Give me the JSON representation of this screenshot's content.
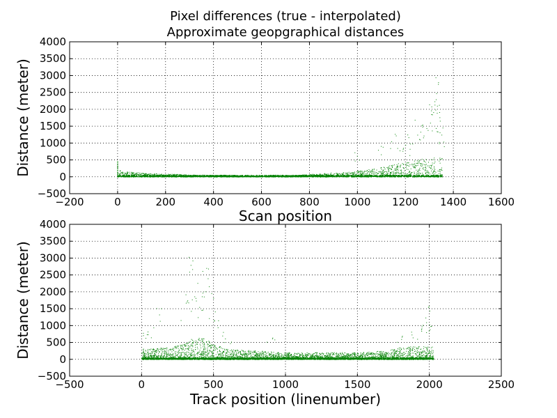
{
  "figure": {
    "title_line1": "Pixel differences (true - interpolated)",
    "title_line2": "Approximate geopgraphical distances"
  },
  "chart_data": [
    {
      "type": "scatter",
      "xlabel": "Scan position",
      "ylabel": "Distance (meter)",
      "xlim": [
        -200,
        1600
      ],
      "ylim": [
        -500,
        4000
      ],
      "xticks": [
        -200,
        0,
        200,
        400,
        600,
        800,
        1000,
        1200,
        1400,
        1600
      ],
      "yticks": [
        -500,
        0,
        500,
        1000,
        1500,
        2000,
        2500,
        3000,
        3500,
        4000
      ],
      "grid": true,
      "marker_color": "#008000",
      "x_data_range": [
        0,
        1354
      ],
      "envelope_x": [
        0,
        2,
        10,
        50,
        100,
        200,
        300,
        400,
        500,
        600,
        700,
        800,
        900,
        1000,
        1050,
        1100,
        1150,
        1200,
        1250,
        1300,
        1330,
        1354
      ],
      "envelope_dense_max": [
        480,
        220,
        180,
        150,
        110,
        80,
        60,
        45,
        35,
        20,
        30,
        70,
        120,
        170,
        220,
        280,
        350,
        450,
        500,
        550,
        560,
        600
      ],
      "outliers": [
        [
          1000,
          700
        ],
        [
          1100,
          900
        ],
        [
          1150,
          1200
        ],
        [
          1180,
          800
        ],
        [
          1200,
          1200
        ],
        [
          1230,
          1000
        ],
        [
          1250,
          1700
        ],
        [
          1270,
          1600
        ],
        [
          1290,
          1700
        ],
        [
          1300,
          2100
        ],
        [
          1310,
          2500
        ],
        [
          1320,
          2900
        ],
        [
          1330,
          2700
        ],
        [
          1335,
          2200
        ],
        [
          1340,
          1900
        ],
        [
          1345,
          1500
        ],
        [
          1350,
          1300
        ]
      ]
    },
    {
      "type": "scatter",
      "xlabel": "Track position (linenumber)",
      "ylabel": "Distance (meter)",
      "xlim": [
        -500,
        2500
      ],
      "ylim": [
        -500,
        4000
      ],
      "xticks": [
        -500,
        0,
        500,
        1000,
        1500,
        2000,
        2500
      ],
      "yticks": [
        -500,
        0,
        500,
        1000,
        1500,
        2000,
        2500,
        3000,
        3500,
        4000
      ],
      "grid": true,
      "marker_color": "#008000",
      "x_data_range": [
        0,
        2030
      ],
      "envelope_x": [
        0,
        100,
        200,
        300,
        350,
        400,
        450,
        500,
        600,
        800,
        1000,
        1200,
        1500,
        1700,
        1800,
        1900,
        2000,
        2030
      ],
      "envelope_dense_max": [
        300,
        320,
        350,
        450,
        600,
        650,
        600,
        450,
        300,
        250,
        200,
        200,
        200,
        250,
        350,
        380,
        400,
        350
      ],
      "outliers": [
        [
          20,
          800
        ],
        [
          60,
          1000
        ],
        [
          120,
          1600
        ],
        [
          300,
          1900
        ],
        [
          330,
          2700
        ],
        [
          350,
          2900
        ],
        [
          370,
          2300
        ],
        [
          400,
          2000
        ],
        [
          420,
          1800
        ],
        [
          450,
          2700
        ],
        [
          480,
          2800
        ],
        [
          500,
          1500
        ],
        [
          540,
          1100
        ],
        [
          600,
          700
        ],
        [
          900,
          700
        ],
        [
          1800,
          800
        ],
        [
          1900,
          900
        ],
        [
          1950,
          1100
        ],
        [
          1980,
          1300
        ],
        [
          2000,
          1500
        ],
        [
          2020,
          1000
        ]
      ]
    }
  ]
}
